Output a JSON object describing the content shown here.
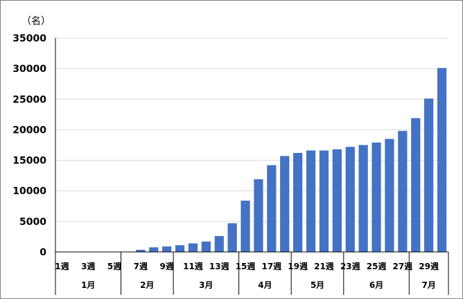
{
  "chart_data": {
    "type": "bar",
    "unit_label": "（名）",
    "categories": [
      "1週",
      "2週",
      "3週",
      "4週",
      "5週",
      "6週",
      "7週",
      "8週",
      "9週",
      "10週",
      "11週",
      "12週",
      "13週",
      "14週",
      "15週",
      "16週",
      "17週",
      "18週",
      "19週",
      "20週",
      "21週",
      "22週",
      "23週",
      "24週",
      "25週",
      "26週",
      "27週",
      "28週",
      "29週",
      "30週"
    ],
    "values": [
      0,
      0,
      0,
      0,
      0,
      0,
      350,
      750,
      900,
      1100,
      1400,
      1700,
      2600,
      4700,
      8400,
      11900,
      14200,
      15700,
      16200,
      16600,
      16600,
      16800,
      17200,
      17500,
      17900,
      18500,
      19800,
      21900,
      25100,
      30100
    ],
    "tick_label_categories": [
      "1週",
      "3週",
      "5週",
      "7週",
      "9週",
      "11週",
      "13週",
      "15週",
      "17週",
      "19週",
      "21週",
      "23週",
      "25週",
      "27週",
      "29週"
    ],
    "months": [
      {
        "label": "1月",
        "weeks": 5
      },
      {
        "label": "2月",
        "weeks": 4
      },
      {
        "label": "3月",
        "weeks": 5
      },
      {
        "label": "4月",
        "weeks": 4
      },
      {
        "label": "5月",
        "weeks": 4
      },
      {
        "label": "6月",
        "weeks": 5
      },
      {
        "label": "7月",
        "weeks": 3
      }
    ],
    "yticks": [
      "0",
      "5000",
      "10000",
      "15000",
      "20000",
      "25000",
      "30000",
      "35000"
    ],
    "ylim": [
      0,
      35000
    ],
    "grid": true,
    "bar_color": "#4472c4",
    "grid_color": "#d9d9d9"
  }
}
